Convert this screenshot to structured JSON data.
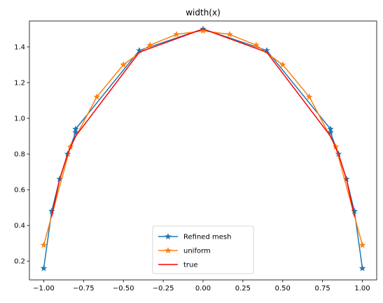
{
  "chart_data": {
    "type": "line",
    "title": "width(x)",
    "xlabel": "",
    "ylabel": "",
    "xlim": [
      -1.09,
      1.09
    ],
    "ylim": [
      0.095,
      1.545
    ],
    "xticks": [
      -1.0,
      -0.75,
      -0.5,
      -0.25,
      0.0,
      0.25,
      0.5,
      0.75,
      1.0
    ],
    "xtick_labels": [
      "−1.00",
      "−0.75",
      "−0.50",
      "−0.25",
      "0.00",
      "0.25",
      "0.50",
      "0.75",
      "1.00"
    ],
    "yticks": [
      0.2,
      0.4,
      0.6,
      0.8,
      1.0,
      1.2,
      1.4
    ],
    "ytick_labels": [
      "0.2",
      "0.4",
      "0.6",
      "0.8",
      "1.0",
      "1.2",
      "1.4"
    ],
    "grid": false,
    "legend": "lower-center",
    "series": [
      {
        "name": "Refined mesh",
        "color": "#1f77b4",
        "marker": "star",
        "x": [
          -1.0,
          -0.95,
          -0.9,
          -0.85,
          -0.8,
          -0.8,
          -0.4,
          0.0,
          0.4,
          0.8,
          0.8,
          0.85,
          0.9,
          0.95,
          1.0
        ],
        "y": [
          0.16,
          0.48,
          0.66,
          0.8,
          0.92,
          0.94,
          1.38,
          1.5,
          1.38,
          0.94,
          0.92,
          0.8,
          0.66,
          0.48,
          0.16
        ]
      },
      {
        "name": "uniform",
        "color": "#ff7f0e",
        "marker": "star",
        "x": [
          -1.0,
          -0.833,
          -0.667,
          -0.5,
          -0.333,
          -0.167,
          0.0,
          0.167,
          0.333,
          0.5,
          0.667,
          0.833,
          1.0
        ],
        "y": [
          0.29,
          0.84,
          1.12,
          1.3,
          1.41,
          1.47,
          1.49,
          1.47,
          1.41,
          1.3,
          1.12,
          0.84,
          0.29
        ]
      },
      {
        "name": "true",
        "color": "#ff0000",
        "marker": "none",
        "x": [
          -0.95,
          -0.9,
          -0.85,
          -0.8,
          -0.4,
          0.0,
          0.4,
          0.8,
          0.85,
          0.9,
          0.95
        ],
        "y": [
          0.45,
          0.66,
          0.8,
          0.9,
          1.37,
          1.5,
          1.37,
          0.9,
          0.8,
          0.66,
          0.45
        ]
      }
    ]
  }
}
